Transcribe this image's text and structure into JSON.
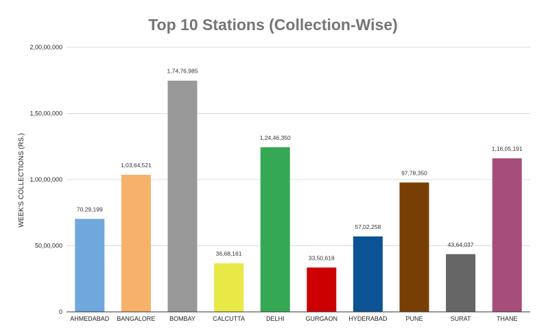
{
  "chart_data": {
    "type": "bar",
    "title": "Top 10 Stations (Collection-Wise)",
    "xlabel": "",
    "ylabel": "WEEK'S COLLECTIONS (RS.)",
    "ylim": [
      0,
      20000000
    ],
    "yticks": [
      0,
      5000000,
      10000000,
      15000000,
      20000000
    ],
    "ytick_labels": [
      "0",
      "50,00,000",
      "1,00,00,000",
      "1,50,00,000",
      "2,00,00,000"
    ],
    "grid": true,
    "legend": "none",
    "categories": [
      "AHMEDABAD",
      "BANGALORE",
      "BOMBAY",
      "CALCUTTA",
      "DELHI",
      "GURGAON",
      "HYDERABAD",
      "PUNE",
      "SURAT",
      "THANE"
    ],
    "values": [
      7029199,
      10364521,
      17476985,
      3668161,
      12446350,
      3350618,
      5702258,
      9778350,
      4364037,
      11605191
    ],
    "data_labels": [
      "70,29,199",
      "1,03,64,521",
      "1,74,76,985",
      "36,68,161",
      "1,24,46,350",
      "33,50,618",
      "57,02,258",
      "97,78,350",
      "43,64,037",
      "1,16,05,191"
    ],
    "colors": [
      "#6fa8dc",
      "#f6b26b",
      "#999999",
      "#e8e846",
      "#34a853",
      "#cc0000",
      "#0b5394",
      "#783f04",
      "#666666",
      "#a64d79"
    ]
  }
}
